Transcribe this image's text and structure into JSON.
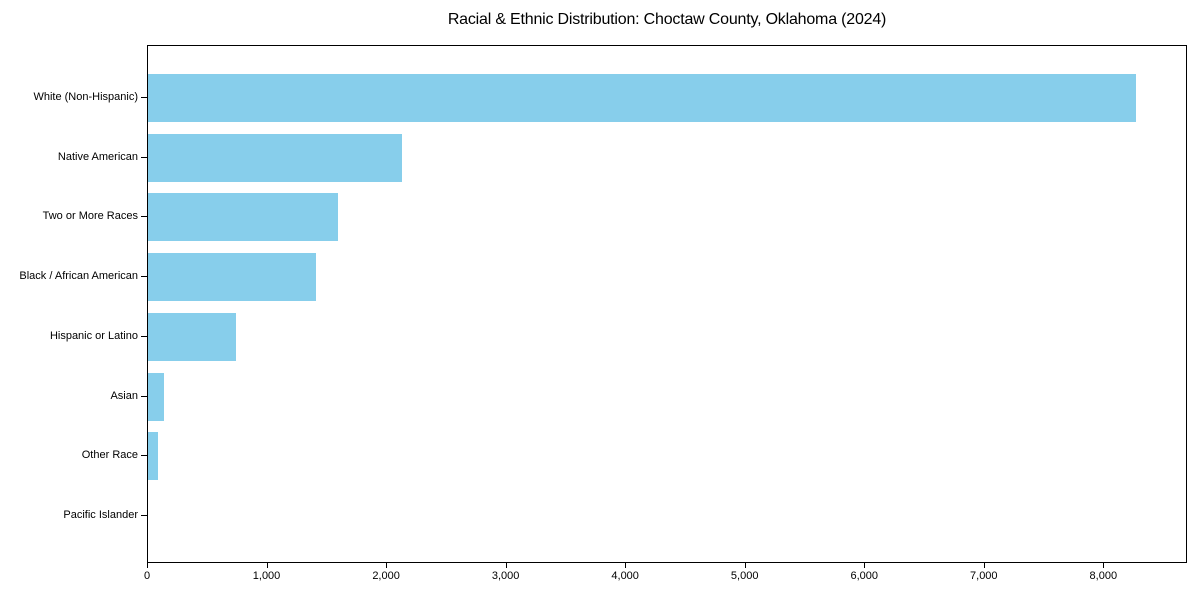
{
  "chart_data": {
    "type": "bar",
    "orientation": "horizontal",
    "title": "Racial & Ethnic Distribution: Choctaw County, Oklahoma (2024)",
    "categories": [
      "White (Non-Hispanic)",
      "Native American",
      "Two or More Races",
      "Black / African American",
      "Hispanic or Latino",
      "Asian",
      "Other Race",
      "Pacific Islander"
    ],
    "values": [
      8280,
      2130,
      1590,
      1410,
      740,
      130,
      80,
      0
    ],
    "xlabel": "",
    "ylabel": "",
    "xlim": [
      0,
      8700
    ],
    "x_ticks": [
      0,
      1000,
      2000,
      3000,
      4000,
      5000,
      6000,
      7000,
      8000
    ],
    "x_tick_labels": [
      "0",
      "1,000",
      "2,000",
      "3,000",
      "4,000",
      "5,000",
      "6,000",
      "7,000",
      "8,000"
    ],
    "bar_color": "#87CEEB",
    "text_color": "#000000",
    "grid": false,
    "legend": null
  }
}
